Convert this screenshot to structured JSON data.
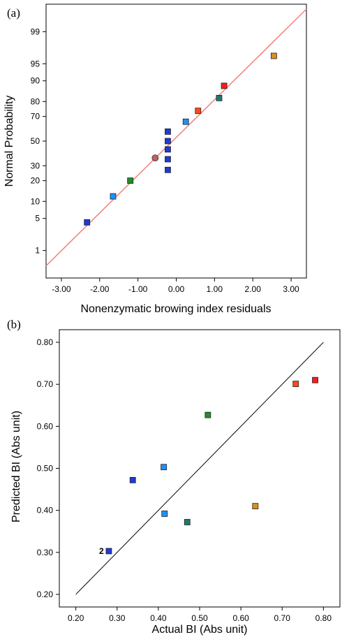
{
  "chart_data": [
    {
      "panel_label": "(a)",
      "type": "scatter",
      "xlabel": "Nonenzymatic browing index residuals",
      "ylabel": "Normal Probability",
      "y_scale": "normal-probability",
      "xlim": [
        -3.4,
        3.4
      ],
      "ylim": [
        0.18,
        99.82
      ],
      "x_ticks": [
        -3,
        -2,
        -1,
        0,
        1,
        2,
        3
      ],
      "x_tick_labels": [
        "-3.00",
        "-2.00",
        "-1.00",
        "0.00",
        "1.00",
        "2.00",
        "3.00"
      ],
      "y_ticks": [
        1,
        5,
        10,
        20,
        30,
        50,
        70,
        80,
        90,
        95,
        99
      ],
      "y_tick_labels": [
        "1",
        "5",
        "10",
        "20",
        "30",
        "50",
        "70",
        "80",
        "90",
        "95",
        "99"
      ],
      "grid": false,
      "reference_line": {
        "x": [
          -3.4,
          3.4
        ],
        "y": [
          0.4,
          99.75
        ],
        "color": "#f08080"
      },
      "points": [
        {
          "x": -2.33,
          "y": 4.2,
          "color": "#1f3bd6",
          "marker": "square"
        },
        {
          "x": -1.65,
          "y": 12,
          "color": "#1e90ff",
          "marker": "square"
        },
        {
          "x": -1.2,
          "y": 20,
          "color": "#1f8f2a",
          "marker": "square"
        },
        {
          "x": -0.55,
          "y": 36,
          "color": "#c06060",
          "marker": "circle"
        },
        {
          "x": -0.22,
          "y": 27,
          "color": "#1f3bd6",
          "marker": "square"
        },
        {
          "x": -0.22,
          "y": 35,
          "color": "#1f3bd6",
          "marker": "square"
        },
        {
          "x": -0.22,
          "y": 43,
          "color": "#1f3bd6",
          "marker": "square"
        },
        {
          "x": -0.22,
          "y": 50,
          "color": "#1f3bd6",
          "marker": "square"
        },
        {
          "x": -0.22,
          "y": 58,
          "color": "#1f3bd6",
          "marker": "square"
        },
        {
          "x": 0.25,
          "y": 66,
          "color": "#1e90ff",
          "marker": "square"
        },
        {
          "x": 0.57,
          "y": 74,
          "color": "#ff4a1a",
          "marker": "square"
        },
        {
          "x": 1.12,
          "y": 82,
          "color": "#1e7a6e",
          "marker": "square"
        },
        {
          "x": 1.25,
          "y": 88,
          "color": "#ff1a1a",
          "marker": "square"
        },
        {
          "x": 2.55,
          "y": 96.5,
          "color": "#d99020",
          "marker": "square"
        }
      ]
    },
    {
      "panel_label": "(b)",
      "type": "scatter",
      "xlabel": "Actual BI (Abs unit)",
      "ylabel": "Predicted BI (Abs unit)",
      "xlim": [
        0.16,
        0.84
      ],
      "ylim": [
        0.17,
        0.83
      ],
      "x_ticks": [
        0.2,
        0.3,
        0.4,
        0.5,
        0.6,
        0.7,
        0.8
      ],
      "x_tick_labels": [
        "0.20",
        "0.30",
        "0.40",
        "0.50",
        "0.60",
        "0.70",
        "0.80"
      ],
      "y_ticks": [
        0.2,
        0.3,
        0.4,
        0.5,
        0.6,
        0.7,
        0.8
      ],
      "y_tick_labels": [
        "0.20",
        "0.30",
        "0.40",
        "0.50",
        "0.60",
        "0.70",
        "0.80"
      ],
      "grid": false,
      "reference_line": {
        "x": [
          0.2,
          0.8
        ],
        "y": [
          0.2,
          0.8
        ],
        "color": "#000000"
      },
      "points": [
        {
          "x": 0.28,
          "y": 0.303,
          "color": "#1f3bd6",
          "marker": "square",
          "label": "2"
        },
        {
          "x": 0.338,
          "y": 0.472,
          "color": "#1f3bd6",
          "marker": "square"
        },
        {
          "x": 0.413,
          "y": 0.503,
          "color": "#1e90ff",
          "marker": "square"
        },
        {
          "x": 0.415,
          "y": 0.392,
          "color": "#1e90ff",
          "marker": "square"
        },
        {
          "x": 0.47,
          "y": 0.372,
          "color": "#1e7a6e",
          "marker": "square"
        },
        {
          "x": 0.52,
          "y": 0.627,
          "color": "#1f8f2a",
          "marker": "square"
        },
        {
          "x": 0.635,
          "y": 0.41,
          "color": "#d99020",
          "marker": "square"
        },
        {
          "x": 0.733,
          "y": 0.701,
          "color": "#ff4a1a",
          "marker": "square"
        },
        {
          "x": 0.78,
          "y": 0.71,
          "color": "#ff1a1a",
          "marker": "square"
        }
      ]
    }
  ]
}
